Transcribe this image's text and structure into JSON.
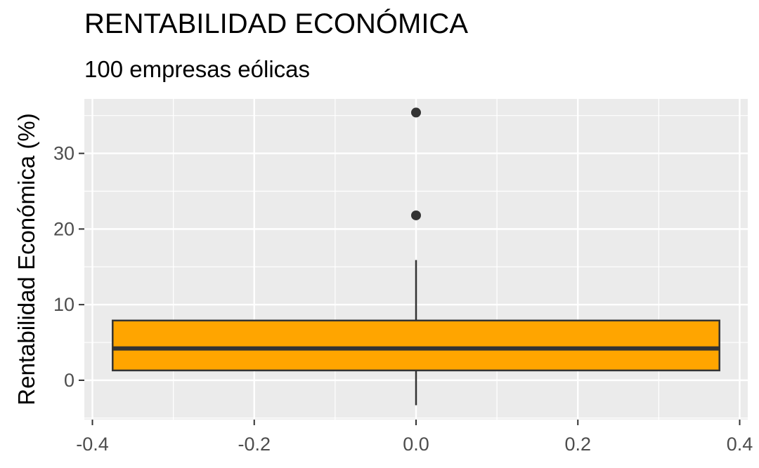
{
  "chart_data": {
    "type": "boxplot",
    "title": "RENTABILIDAD ECONÓMICA",
    "subtitle": "100 empresas eólicas",
    "xlabel": "",
    "ylabel": "Rentabilidad Económica (%)",
    "xlim": [
      -0.41,
      0.41
    ],
    "ylim": [
      -5.2,
      37.2
    ],
    "x_ticks": [
      -0.4,
      -0.2,
      0.0,
      0.2,
      0.4
    ],
    "x_tick_labels": [
      "-0.4",
      "-0.2",
      "0.0",
      "0.2",
      "0.4"
    ],
    "y_ticks": [
      0,
      10,
      20,
      30
    ],
    "y_tick_labels": [
      "0",
      "10",
      "20",
      "30"
    ],
    "grid": true,
    "box": {
      "x_center": 0.0,
      "x_width": 0.75,
      "min": -3.3,
      "q1": 1.3,
      "median": 4.2,
      "q3": 7.9,
      "max": 15.9,
      "fill": "#FFA500",
      "outliers": [
        21.8,
        35.4
      ]
    }
  }
}
